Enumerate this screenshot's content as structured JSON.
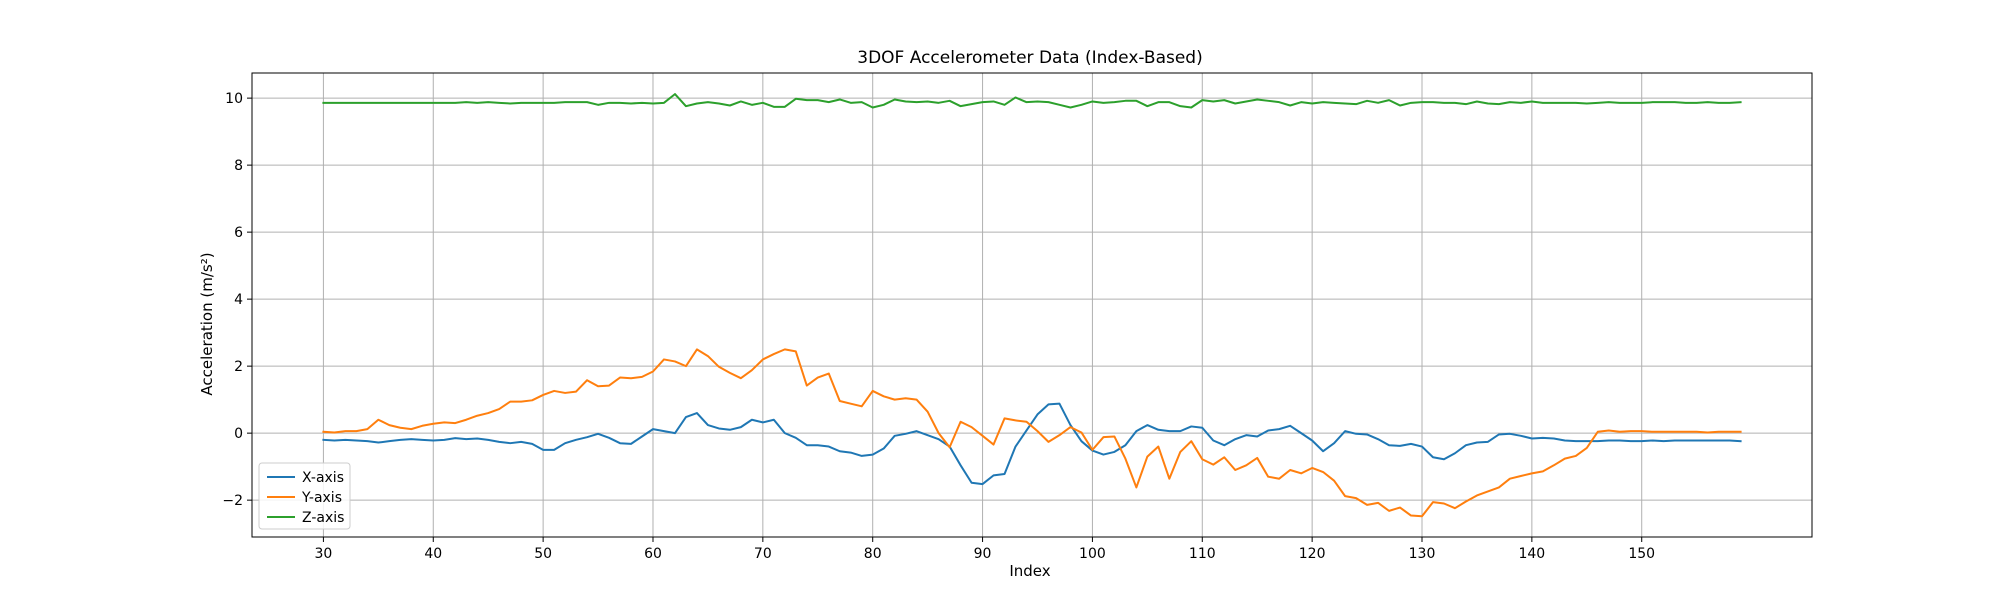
{
  "chart_data": {
    "type": "line",
    "title": "3DOF Accelerometer Data (Index-Based)",
    "xlabel": "Index",
    "ylabel": "Acceleration (m/s²)",
    "xlim": [
      23.5,
      165.5
    ],
    "ylim": [
      -3.1,
      10.75
    ],
    "xticks": [
      30,
      40,
      50,
      60,
      70,
      80,
      90,
      100,
      110,
      120,
      130,
      140,
      150
    ],
    "yticks": [
      -2,
      0,
      2,
      4,
      6,
      8,
      10
    ],
    "grid": true,
    "legend_position": "lower-left",
    "x_start": 30,
    "series": [
      {
        "name": "X-axis",
        "color": "#1f77b4",
        "values": [
          -0.2,
          -0.22,
          -0.2,
          -0.22,
          -0.24,
          -0.28,
          -0.24,
          -0.2,
          -0.18,
          -0.2,
          -0.22,
          -0.2,
          -0.15,
          -0.18,
          -0.16,
          -0.2,
          -0.26,
          -0.3,
          -0.26,
          -0.32,
          -0.5,
          -0.5,
          -0.3,
          -0.2,
          -0.12,
          -0.02,
          -0.14,
          -0.3,
          -0.32,
          -0.1,
          0.12,
          0.06,
          0.0,
          0.48,
          0.6,
          0.24,
          0.14,
          0.1,
          0.18,
          0.4,
          0.32,
          0.4,
          0.0,
          -0.14,
          -0.36,
          -0.36,
          -0.4,
          -0.54,
          -0.58,
          -0.68,
          -0.64,
          -0.46,
          -0.08,
          -0.02,
          0.06,
          -0.06,
          -0.18,
          -0.4,
          -0.96,
          -1.48,
          -1.52,
          -1.26,
          -1.22,
          -0.4,
          0.08,
          0.56,
          0.86,
          0.88,
          0.24,
          -0.24,
          -0.52,
          -0.64,
          -0.56,
          -0.36,
          0.06,
          0.24,
          0.1,
          0.06,
          0.06,
          0.2,
          0.16,
          -0.22,
          -0.36,
          -0.18,
          -0.06,
          -0.1,
          0.08,
          0.12,
          0.22,
          0.0,
          -0.22,
          -0.54,
          -0.3,
          0.06,
          -0.02,
          -0.04,
          -0.18,
          -0.36,
          -0.38,
          -0.32,
          -0.4,
          -0.72,
          -0.78,
          -0.6,
          -0.36,
          -0.28,
          -0.26,
          -0.04,
          -0.02,
          -0.08,
          -0.16,
          -0.14,
          -0.16,
          -0.22,
          -0.24,
          -0.24,
          -0.24,
          -0.22,
          -0.22,
          -0.24,
          -0.24,
          -0.22,
          -0.24,
          -0.22,
          -0.22,
          -0.22,
          -0.22,
          -0.22,
          -0.22,
          -0.24
        ]
      },
      {
        "name": "Y-axis",
        "color": "#ff7f0e",
        "values": [
          0.04,
          0.02,
          0.06,
          0.06,
          0.12,
          0.4,
          0.24,
          0.16,
          0.12,
          0.22,
          0.28,
          0.32,
          0.3,
          0.4,
          0.52,
          0.6,
          0.72,
          0.94,
          0.94,
          0.98,
          1.14,
          1.26,
          1.2,
          1.24,
          1.58,
          1.4,
          1.42,
          1.66,
          1.64,
          1.68,
          1.84,
          2.2,
          2.14,
          2.0,
          2.5,
          2.3,
          1.98,
          1.8,
          1.64,
          1.88,
          2.2,
          2.36,
          2.5,
          2.44,
          1.42,
          1.66,
          1.78,
          0.96,
          0.88,
          0.8,
          1.26,
          1.1,
          1.0,
          1.04,
          1.0,
          0.64,
          0.0,
          -0.42,
          0.34,
          0.18,
          -0.08,
          -0.34,
          0.44,
          0.38,
          0.34,
          0.06,
          -0.26,
          -0.06,
          0.18,
          0.02,
          -0.5,
          -0.12,
          -0.1,
          -0.76,
          -1.62,
          -0.7,
          -0.4,
          -1.36,
          -0.56,
          -0.24,
          -0.78,
          -0.94,
          -0.72,
          -1.1,
          -0.96,
          -0.74,
          -1.3,
          -1.36,
          -1.1,
          -1.2,
          -1.04,
          -1.16,
          -1.42,
          -1.88,
          -1.94,
          -2.14,
          -2.08,
          -2.32,
          -2.22,
          -2.46,
          -2.48,
          -2.06,
          -2.1,
          -2.24,
          -2.04,
          -1.86,
          -1.74,
          -1.62,
          -1.36,
          -1.28,
          -1.2,
          -1.14,
          -0.96,
          -0.76,
          -0.68,
          -0.44,
          0.04,
          0.08,
          0.04,
          0.06,
          0.06,
          0.04,
          0.04,
          0.04,
          0.04,
          0.04,
          0.02,
          0.04,
          0.04,
          0.04
        ]
      },
      {
        "name": "Z-axis",
        "color": "#2ca02c",
        "values": [
          9.86,
          9.86,
          9.86,
          9.86,
          9.86,
          9.86,
          9.86,
          9.86,
          9.86,
          9.86,
          9.86,
          9.86,
          9.86,
          9.88,
          9.86,
          9.88,
          9.86,
          9.84,
          9.86,
          9.86,
          9.86,
          9.86,
          9.88,
          9.88,
          9.88,
          9.8,
          9.86,
          9.86,
          9.84,
          9.86,
          9.84,
          9.86,
          10.12,
          9.76,
          9.84,
          9.88,
          9.84,
          9.78,
          9.9,
          9.8,
          9.86,
          9.74,
          9.74,
          9.98,
          9.94,
          9.94,
          9.88,
          9.96,
          9.86,
          9.88,
          9.72,
          9.8,
          9.96,
          9.9,
          9.88,
          9.9,
          9.86,
          9.92,
          9.76,
          9.82,
          9.88,
          9.9,
          9.8,
          10.02,
          9.88,
          9.9,
          9.88,
          9.8,
          9.72,
          9.8,
          9.9,
          9.86,
          9.88,
          9.92,
          9.92,
          9.76,
          9.88,
          9.88,
          9.76,
          9.72,
          9.94,
          9.9,
          9.94,
          9.84,
          9.9,
          9.96,
          9.92,
          9.88,
          9.78,
          9.88,
          9.84,
          9.88,
          9.86,
          9.84,
          9.82,
          9.92,
          9.86,
          9.94,
          9.78,
          9.86,
          9.88,
          9.88,
          9.86,
          9.86,
          9.82,
          9.9,
          9.84,
          9.82,
          9.88,
          9.86,
          9.9,
          9.86,
          9.86,
          9.86,
          9.86,
          9.84,
          9.86,
          9.88,
          9.86,
          9.86,
          9.86,
          9.88,
          9.88,
          9.88,
          9.86,
          9.86,
          9.88,
          9.86,
          9.86,
          9.88
        ]
      }
    ]
  }
}
